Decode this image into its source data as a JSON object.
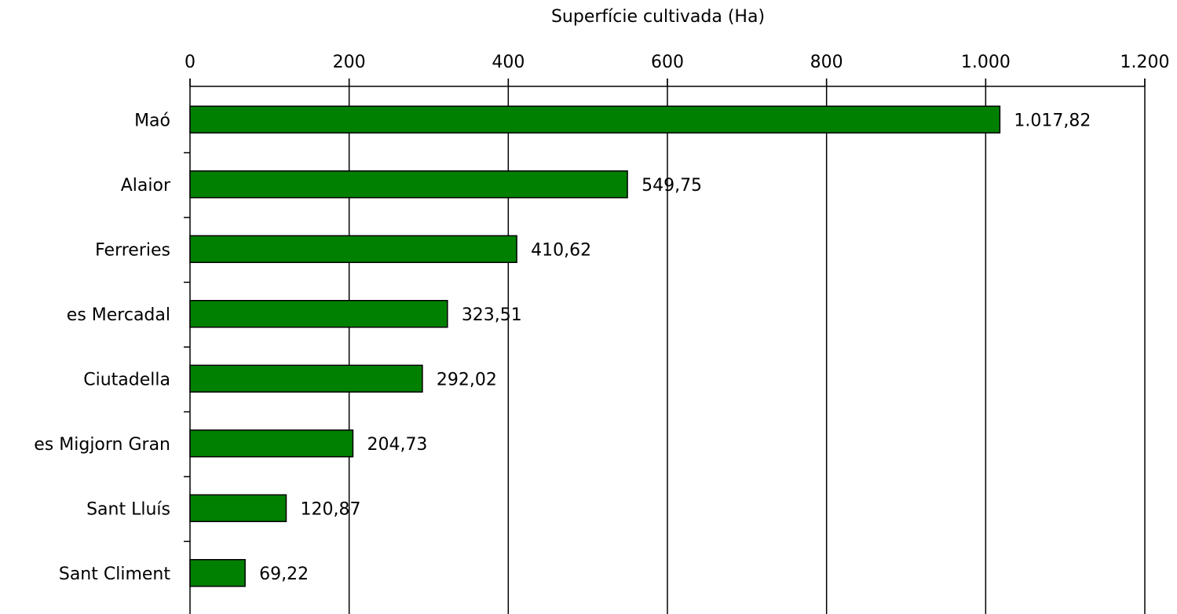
{
  "chart_data": {
    "type": "bar",
    "orientation": "horizontal",
    "title": "",
    "xlabel": "Superfície cultivada (Ha)",
    "xlabel_position": "top",
    "ylabel": "",
    "xlim": [
      0,
      1200
    ],
    "xticks": [
      0,
      200,
      400,
      600,
      800,
      1000,
      1200
    ],
    "xtick_labels": [
      "0",
      "200",
      "400",
      "600",
      "800",
      "1.000",
      "1.200"
    ],
    "grid": "vertical",
    "categories": [
      "Maó",
      "Alaior",
      "Ferreries",
      "es Mercadal",
      "Ciutadella",
      "es Migjorn Gran",
      "Sant Lluís",
      "Sant Climent"
    ],
    "values": [
      1017.82,
      549.75,
      410.62,
      323.51,
      292.02,
      204.73,
      120.87,
      69.22
    ],
    "value_labels": [
      "1.017,82",
      "549,75",
      "410,62",
      "323,51",
      "292,02",
      "204,73",
      "120,87",
      "69,22"
    ],
    "bar_color": "#008000",
    "bar_edge_color": "#000000"
  }
}
